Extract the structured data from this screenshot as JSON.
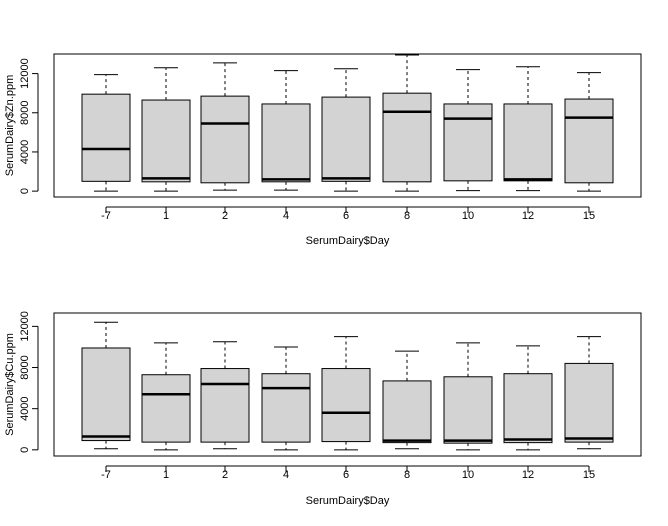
{
  "colors": {
    "box_fill": "#d3d3d3",
    "stroke": "#000000",
    "background": "#ffffff"
  },
  "chart_data": [
    {
      "type": "boxplot",
      "xlabel": "SerumDairy$Day",
      "ylabel": "SerumDairy$Zn.ppm",
      "categories": [
        "-7",
        "1",
        "2",
        "4",
        "6",
        "8",
        "10",
        "12",
        "15"
      ],
      "yticks": [
        "0",
        "4000",
        "8000",
        "12000"
      ],
      "ylim": [
        -600,
        14000
      ],
      "grid": false,
      "boxes": [
        {
          "category": "-7",
          "min": 0,
          "q1": 1000,
          "median": 4300,
          "q3": 9900,
          "max": 11900
        },
        {
          "category": "1",
          "min": 0,
          "q1": 950,
          "median": 1300,
          "q3": 9300,
          "max": 12600
        },
        {
          "category": "2",
          "min": 100,
          "q1": 850,
          "median": 6900,
          "q3": 9700,
          "max": 13100
        },
        {
          "category": "4",
          "min": 100,
          "q1": 950,
          "median": 1200,
          "q3": 8900,
          "max": 12300
        },
        {
          "category": "6",
          "min": 0,
          "q1": 1000,
          "median": 1300,
          "q3": 9600,
          "max": 12500
        },
        {
          "category": "8",
          "min": 0,
          "q1": 950,
          "median": 8100,
          "q3": 10000,
          "max": 13900
        },
        {
          "category": "10",
          "min": 50,
          "q1": 1050,
          "median": 7400,
          "q3": 8900,
          "max": 12400
        },
        {
          "category": "12",
          "min": 50,
          "q1": 1050,
          "median": 1200,
          "q3": 8900,
          "max": 12700
        },
        {
          "category": "15",
          "min": 0,
          "q1": 850,
          "median": 7500,
          "q3": 9400,
          "max": 12100
        }
      ]
    },
    {
      "type": "boxplot",
      "xlabel": "SerumDairy$Day",
      "ylabel": "SerumDairy$Cu.ppm",
      "categories": [
        "-7",
        "1",
        "2",
        "4",
        "6",
        "8",
        "10",
        "12",
        "15"
      ],
      "yticks": [
        "0",
        "4000",
        "8000",
        "12000"
      ],
      "ylim": [
        -600,
        13300
      ],
      "grid": false,
      "boxes": [
        {
          "category": "-7",
          "min": 100,
          "q1": 900,
          "median": 1300,
          "q3": 9900,
          "max": 12400
        },
        {
          "category": "1",
          "min": 0,
          "q1": 750,
          "median": 5400,
          "q3": 7300,
          "max": 10400
        },
        {
          "category": "2",
          "min": 100,
          "q1": 750,
          "median": 6400,
          "q3": 7900,
          "max": 10500
        },
        {
          "category": "4",
          "min": 0,
          "q1": 750,
          "median": 6000,
          "q3": 7400,
          "max": 10000
        },
        {
          "category": "6",
          "min": 0,
          "q1": 800,
          "median": 3600,
          "q3": 7900,
          "max": 11000
        },
        {
          "category": "8",
          "min": 100,
          "q1": 700,
          "median": 900,
          "q3": 6700,
          "max": 9600
        },
        {
          "category": "10",
          "min": 0,
          "q1": 650,
          "median": 900,
          "q3": 7100,
          "max": 10400
        },
        {
          "category": "12",
          "min": 0,
          "q1": 700,
          "median": 1000,
          "q3": 7400,
          "max": 10100
        },
        {
          "category": "15",
          "min": 100,
          "q1": 750,
          "median": 1100,
          "q3": 8400,
          "max": 11000
        }
      ]
    }
  ]
}
